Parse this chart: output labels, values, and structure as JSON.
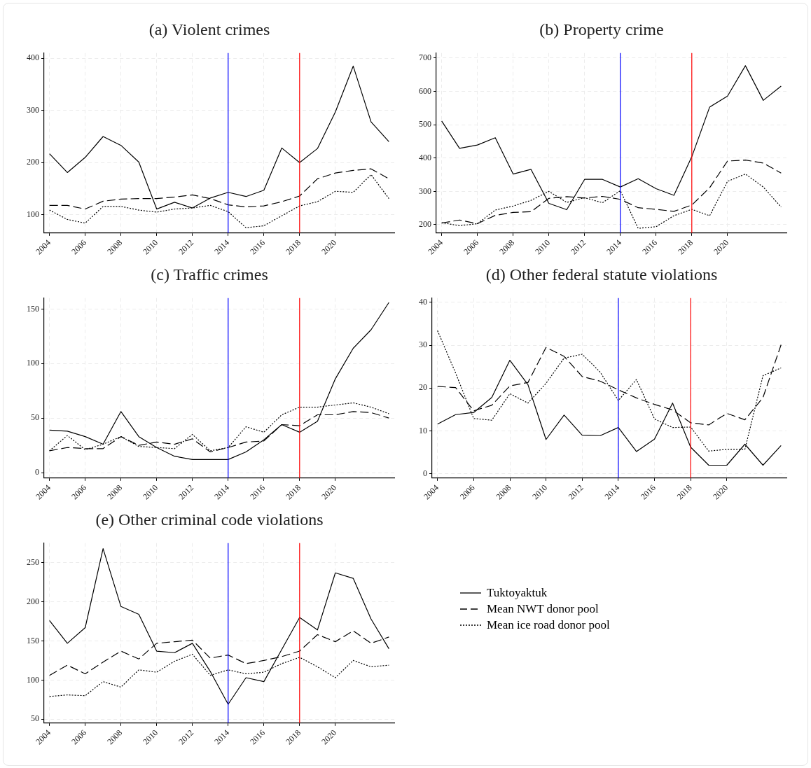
{
  "chart_data": [
    {
      "type": "line",
      "title": "(a) Violent crimes",
      "x": [
        2004,
        2005,
        2006,
        2007,
        2008,
        2009,
        2010,
        2011,
        2012,
        2013,
        2014,
        2015,
        2016,
        2017,
        2018,
        2019,
        2020,
        2021,
        2022,
        2023
      ],
      "xlim": [
        2003.7,
        2023.3
      ],
      "xticks": [
        2004,
        2006,
        2008,
        2010,
        2012,
        2014,
        2016,
        2018,
        2020
      ],
      "ylim": [
        65,
        410
      ],
      "yticks": [
        100,
        200,
        300,
        400
      ],
      "grid": true,
      "legend": false,
      "series": [
        {
          "color": "#000000",
          "line_style": "solid",
          "values": [
            217,
            181,
            210,
            250,
            233,
            201,
            111,
            124,
            113,
            132,
            143,
            135,
            147,
            228,
            200,
            227,
            297,
            385,
            278,
            240
          ]
        },
        {
          "color": "#000000",
          "line_style": "dashed",
          "values": [
            118,
            118,
            111,
            126,
            130,
            131,
            131,
            134,
            138,
            131,
            119,
            115,
            117,
            125,
            136,
            169,
            180,
            185,
            188,
            169
          ]
        },
        {
          "color": "#000000",
          "line_style": "dotted",
          "values": [
            109,
            91,
            84,
            116,
            116,
            109,
            105,
            111,
            113,
            118,
            106,
            75,
            79,
            98,
            117,
            125,
            145,
            143,
            177,
            131
          ]
        }
      ],
      "ref_lines": [
        {
          "axis": "x",
          "value": 2014,
          "color": "#0000ff"
        },
        {
          "axis": "x",
          "value": 2018,
          "color": "#ff0000"
        }
      ]
    },
    {
      "type": "line",
      "title": "(b) Property crime",
      "x": [
        2004,
        2005,
        2006,
        2007,
        2008,
        2009,
        2010,
        2011,
        2012,
        2013,
        2014,
        2015,
        2016,
        2017,
        2018,
        2019,
        2020,
        2021,
        2022,
        2023
      ],
      "xlim": [
        2003.7,
        2023.3
      ],
      "xticks": [
        2004,
        2006,
        2008,
        2010,
        2012,
        2014,
        2016,
        2018,
        2020
      ],
      "ylim": [
        175,
        715
      ],
      "yticks": [
        200,
        300,
        400,
        500,
        600,
        700
      ],
      "grid": true,
      "legend": false,
      "series": [
        {
          "color": "#000000",
          "line_style": "solid",
          "values": [
            511,
            429,
            439,
            461,
            352,
            366,
            264,
            245,
            336,
            336,
            313,
            338,
            308,
            288,
            404,
            553,
            586,
            677,
            573,
            616
          ]
        },
        {
          "color": "#000000",
          "line_style": "dashed",
          "values": [
            205,
            214,
            203,
            228,
            237,
            239,
            279,
            284,
            280,
            285,
            276,
            251,
            246,
            240,
            259,
            311,
            391,
            394,
            385,
            355
          ]
        },
        {
          "color": "#000000",
          "line_style": "dotted",
          "values": [
            206,
            197,
            203,
            244,
            256,
            273,
            300,
            267,
            281,
            266,
            302,
            189,
            194,
            227,
            246,
            227,
            330,
            352,
            313,
            253
          ]
        }
      ],
      "ref_lines": [
        {
          "axis": "x",
          "value": 2014,
          "color": "#0000ff"
        },
        {
          "axis": "x",
          "value": 2018,
          "color": "#ff0000"
        }
      ]
    },
    {
      "type": "line",
      "title": "(c) Traffic crimes",
      "x": [
        2004,
        2005,
        2006,
        2007,
        2008,
        2009,
        2010,
        2011,
        2012,
        2013,
        2014,
        2015,
        2016,
        2017,
        2018,
        2019,
        2020,
        2021,
        2022,
        2023
      ],
      "xlim": [
        2003.7,
        2023.3
      ],
      "xticks": [
        2004,
        2006,
        2008,
        2010,
        2012,
        2014,
        2016,
        2018,
        2020
      ],
      "ylim": [
        -5,
        160
      ],
      "yticks": [
        0,
        50,
        100,
        150
      ],
      "grid": true,
      "legend": false,
      "series": [
        {
          "color": "#000000",
          "line_style": "solid",
          "values": [
            39,
            38,
            33,
            26,
            56,
            33,
            23,
            15,
            12,
            12,
            12,
            19,
            30,
            44,
            37,
            47,
            86,
            114,
            131,
            156
          ]
        },
        {
          "color": "#000000",
          "line_style": "dashed",
          "values": [
            20,
            23,
            22,
            22,
            33,
            25,
            28,
            26,
            31,
            19,
            23,
            28,
            29,
            44,
            43,
            53,
            53,
            56,
            55,
            50
          ]
        },
        {
          "color": "#000000",
          "line_style": "dotted",
          "values": [
            20,
            34,
            21,
            26,
            33,
            24,
            23,
            22,
            35,
            20,
            23,
            42,
            37,
            53,
            60,
            60,
            62,
            64,
            60,
            54
          ]
        }
      ],
      "ref_lines": [
        {
          "axis": "x",
          "value": 2014,
          "color": "#0000ff"
        },
        {
          "axis": "x",
          "value": 2018,
          "color": "#ff0000"
        }
      ]
    },
    {
      "type": "line",
      "title": "(d) Other federal statute violations",
      "x": [
        2004,
        2005,
        2006,
        2007,
        2008,
        2009,
        2010,
        2011,
        2012,
        2013,
        2014,
        2015,
        2016,
        2017,
        2018,
        2019,
        2020,
        2021,
        2022,
        2023
      ],
      "xlim": [
        2003.7,
        2023.3
      ],
      "xticks": [
        2004,
        2006,
        2008,
        2010,
        2012,
        2014,
        2016,
        2018,
        2020
      ],
      "ylim": [
        -1,
        41
      ],
      "yticks": [
        0,
        10,
        20,
        30,
        40
      ],
      "grid": true,
      "legend": false,
      "series": [
        {
          "color": "#000000",
          "line_style": "solid",
          "values": [
            11.6,
            13.8,
            14.3,
            17.8,
            26.5,
            20.8,
            8.0,
            13.7,
            9.0,
            8.9,
            10.8,
            5.2,
            8.1,
            16.5,
            6.2,
            2.0,
            2.0,
            6.9,
            2.0,
            6.6
          ]
        },
        {
          "color": "#000000",
          "line_style": "dashed",
          "values": [
            20.4,
            20.1,
            14.7,
            16.0,
            20.5,
            21.3,
            29.5,
            27.4,
            22.7,
            21.6,
            19.6,
            17.7,
            16.2,
            14.9,
            11.9,
            11.4,
            14.1,
            12.6,
            17.8,
            30.1
          ]
        },
        {
          "color": "#000000",
          "line_style": "dotted",
          "values": [
            33.4,
            23.5,
            12.9,
            12.5,
            18.7,
            16.5,
            21.1,
            27.0,
            27.9,
            23.7,
            17.1,
            22.0,
            12.8,
            10.8,
            10.9,
            5.3,
            5.7,
            5.7,
            22.9,
            24.7
          ]
        }
      ],
      "ref_lines": [
        {
          "axis": "x",
          "value": 2014,
          "color": "#0000ff"
        },
        {
          "axis": "x",
          "value": 2018,
          "color": "#ff0000"
        }
      ]
    },
    {
      "type": "line",
      "title": "(e) Other criminal code violations",
      "x": [
        2004,
        2005,
        2006,
        2007,
        2008,
        2009,
        2010,
        2011,
        2012,
        2013,
        2014,
        2015,
        2016,
        2017,
        2018,
        2019,
        2020,
        2021,
        2022,
        2023
      ],
      "xlim": [
        2003.7,
        2023.3
      ],
      "xticks": [
        2004,
        2006,
        2008,
        2010,
        2012,
        2014,
        2016,
        2018,
        2020
      ],
      "ylim": [
        45,
        275
      ],
      "yticks": [
        50,
        100,
        150,
        200,
        250
      ],
      "grid": true,
      "legend": "right",
      "series": [
        {
          "name": "Tuktoyaktuk",
          "color": "#000000",
          "line_style": "solid",
          "values": [
            176,
            147,
            167,
            268,
            194,
            184,
            137,
            135,
            147,
            111,
            69,
            103,
            98,
            139,
            180,
            164,
            237,
            230,
            178,
            140
          ]
        },
        {
          "name": "Mean NWT donor pool",
          "color": "#000000",
          "line_style": "dashed",
          "values": [
            106,
            119,
            108,
            123,
            137,
            127,
            147,
            149,
            151,
            128,
            132,
            121,
            125,
            130,
            137,
            158,
            149,
            163,
            147,
            155
          ]
        },
        {
          "name": "Mean ice road donor pool",
          "color": "#000000",
          "line_style": "dotted",
          "values": [
            79,
            81,
            80,
            98,
            91,
            113,
            110,
            124,
            133,
            106,
            113,
            108,
            110,
            121,
            129,
            117,
            103,
            125,
            117,
            119
          ]
        }
      ],
      "ref_lines": [
        {
          "axis": "x",
          "value": 2014,
          "color": "#0000ff"
        },
        {
          "axis": "x",
          "value": 2018,
          "color": "#ff0000"
        }
      ]
    }
  ]
}
